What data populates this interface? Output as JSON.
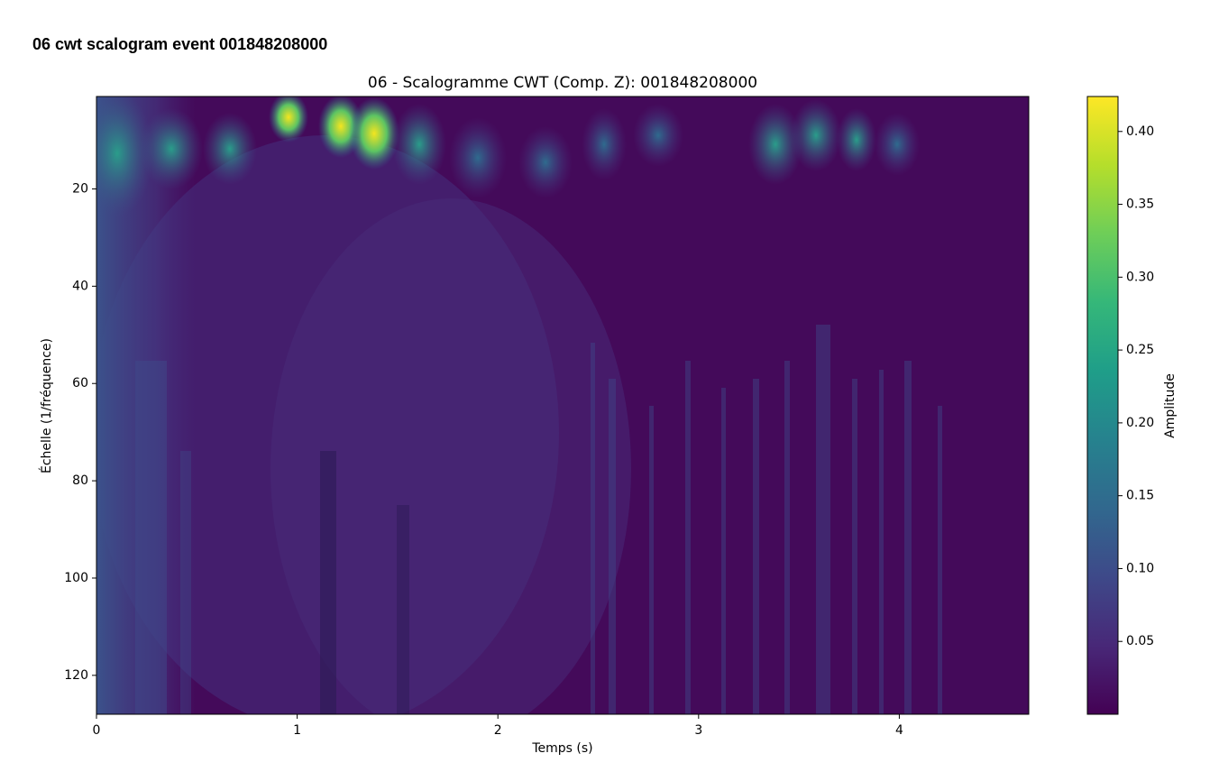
{
  "page_title": "06 cwt scalogram event 001848208000",
  "chart_data": {
    "type": "heatmap",
    "title": "06 - Scalogramme CWT (Comp. Z): 001848208000",
    "x_label": "Temps (s)",
    "y_label": "Échelle (1/fréquence)",
    "xlim": [
      0,
      4.645
    ],
    "xticks": [
      0,
      1,
      2,
      3,
      4
    ],
    "ylim": [
      1,
      128
    ],
    "y_inverted": true,
    "yticks": [
      20,
      40,
      60,
      80,
      100,
      120
    ],
    "colormap": "viridis",
    "colorbar": {
      "label": "Amplitude",
      "lim": [
        0.0,
        0.424
      ],
      "ticks": [
        {
          "value": 0.05,
          "label": "0.05"
        },
        {
          "value": 0.1,
          "label": "0.10"
        },
        {
          "value": 0.15,
          "label": "0.15"
        },
        {
          "value": 0.2,
          "label": "0.20"
        },
        {
          "value": 0.25,
          "label": "0.25"
        },
        {
          "value": 0.3,
          "label": "0.30"
        },
        {
          "value": 0.35,
          "label": "0.35"
        },
        {
          "value": 0.4,
          "label": "0.40"
        }
      ]
    }
  }
}
